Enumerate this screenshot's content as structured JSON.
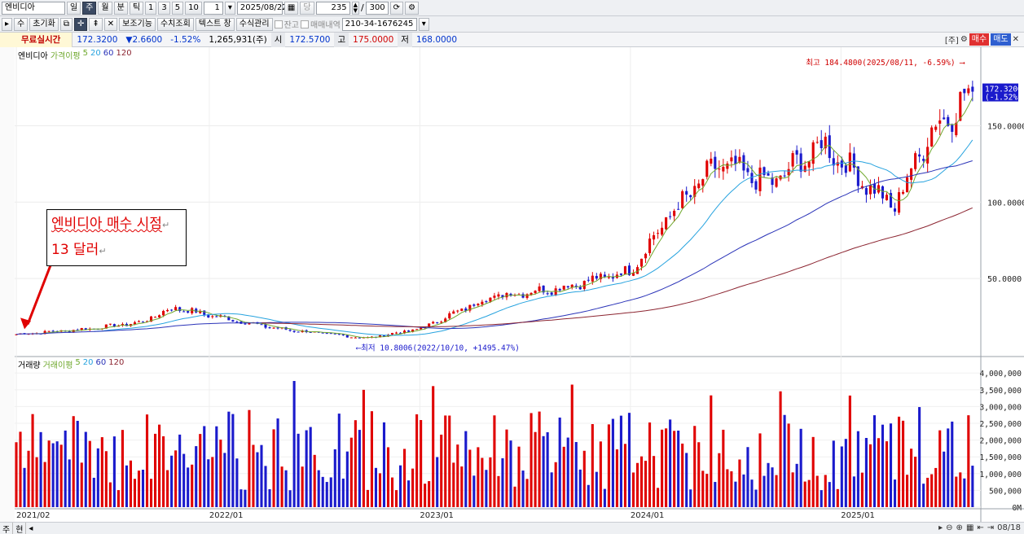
{
  "toolbar1": {
    "stock_name": "엔비디아",
    "periods": [
      "일",
      "주",
      "월",
      "분",
      "틱"
    ],
    "active_period": "주",
    "intervals": [
      "1",
      "3",
      "5",
      "10"
    ],
    "interval_value": "1",
    "date": "2025/08/22",
    "dang_label": "당",
    "count": "235",
    "slash": "/",
    "total": "300"
  },
  "toolbar2": {
    "buttons": [
      "수",
      "초기화",
      "보조기능",
      "수치조회",
      "텍스트 창",
      "수식관리"
    ],
    "check_balance": "잔고",
    "check_trades": "매매내역",
    "account": "210-34-1676245"
  },
  "infobar": {
    "live": "무료실시간",
    "price": "172.3200",
    "change": "▼2.6600",
    "change_pct": "-1.52%",
    "volume": "1,265,931(주)",
    "open_label": "시",
    "open": "172.5700",
    "high_label": "고",
    "high": "175.0000",
    "low_label": "저",
    "low": "168.0000",
    "unit": "[주]",
    "buy": "매수",
    "sell": "매도"
  },
  "legends": {
    "price": {
      "name": "엔비디아",
      "ma_label": "가격이평",
      "periods": [
        "5",
        "20",
        "60",
        "120"
      ]
    },
    "volume": {
      "name": "거래량",
      "ma_label": "거래이평",
      "periods": [
        "5",
        "20",
        "60",
        "120"
      ]
    }
  },
  "annotation": {
    "line1": "엔비디아 매수 시점",
    "line2": "13 달러",
    "mark": "↵"
  },
  "bottombar": {
    "left1": "주",
    "left2": "현",
    "date_end": "08/18"
  },
  "colors": {
    "up": "#e00000",
    "down": "#1a1acc",
    "ma5": "#6fa82d",
    "ma20": "#27a3df",
    "ma60": "#2a33b8",
    "ma120": "#8c2531"
  },
  "chart_data": [
    {
      "type": "candlestick",
      "title": "엔비디아",
      "x_range": [
        "2021-02",
        "2025-08"
      ],
      "x_ticks": [
        "2021/02",
        "2022/01",
        "2023/01",
        "2024/01",
        "2025/01"
      ],
      "y_ticks": [
        "50.0000",
        "100.0000",
        "150.0000"
      ],
      "y_range": [
        0,
        195
      ],
      "current_price_label": "172.3200",
      "current_change_label": "(-1.52%)",
      "high_annotation": "최고 184.4800(2025/08/11, -6.59%)",
      "low_annotation": "최저 10.8006(2022/10/10, +1495.47%)",
      "approx_close_by_week_anchor": [
        {
          "x": "2021/02",
          "v": 13.5
        },
        {
          "x": "2021/06",
          "v": 17
        },
        {
          "x": "2021/09",
          "v": 21
        },
        {
          "x": "2021/11",
          "v": 31
        },
        {
          "x": "2022/01",
          "v": 26
        },
        {
          "x": "2022/05",
          "v": 17
        },
        {
          "x": "2022/10",
          "v": 11
        },
        {
          "x": "2023/01",
          "v": 17
        },
        {
          "x": "2023/05",
          "v": 38
        },
        {
          "x": "2023/09",
          "v": 44
        },
        {
          "x": "2024/01",
          "v": 55
        },
        {
          "x": "2024/03",
          "v": 88
        },
        {
          "x": "2024/06",
          "v": 125
        },
        {
          "x": "2024/09",
          "v": 112
        },
        {
          "x": "2024/12",
          "v": 138
        },
        {
          "x": "2025/04",
          "v": 96
        },
        {
          "x": "2025/06",
          "v": 145
        },
        {
          "x": "2025/08",
          "v": 172.32
        }
      ]
    },
    {
      "type": "bar",
      "title": "거래량",
      "y_ticks": [
        "0M",
        "500,000",
        "1,000,000",
        "1,500,000",
        "2,000,000",
        "2,500,000",
        "3,000,000",
        "3,500,000",
        "4,000,000"
      ],
      "y_range": [
        0,
        4200000
      ]
    }
  ]
}
